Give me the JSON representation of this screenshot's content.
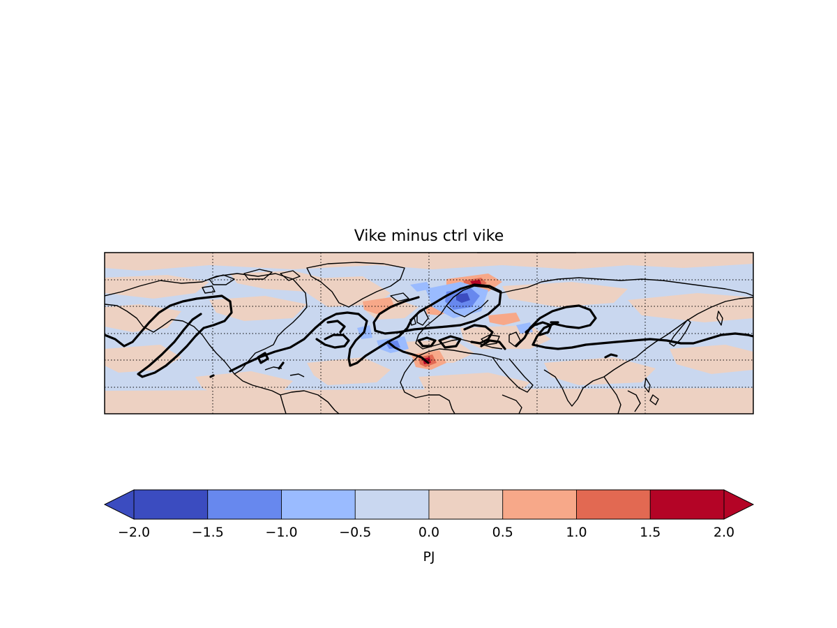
{
  "figure": {
    "title": "Vike minus ctrl vike",
    "map_type": "contour-fill anomaly map with overlaid black contour lines, coastlines and dotted graticule",
    "background_color": "#c9d7ef"
  },
  "colorbar": {
    "label": "PJ",
    "extend": "both",
    "ticks": [
      "−2.0",
      "−1.5",
      "−1.0",
      "−0.5",
      "0.0",
      "0.5",
      "1.0",
      "1.5",
      "2.0"
    ],
    "colors": [
      "#3b4cc0",
      "#6788ee",
      "#9abbff",
      "#c9d7f0",
      "#edd1c2",
      "#f7a889",
      "#e26952",
      "#b40426"
    ],
    "under_color": "#3b4cc0",
    "over_color": "#b40426"
  },
  "colors": {
    "neg_small": "#c9d7ef",
    "pos_small": "#edd1c2",
    "neg_mid": "#9abbff",
    "neg_strong": "#6788ee",
    "neg_max": "#3b4cc0",
    "pos_mid": "#f7a889",
    "pos_strong": "#e26952",
    "pos_max": "#b40426"
  }
}
